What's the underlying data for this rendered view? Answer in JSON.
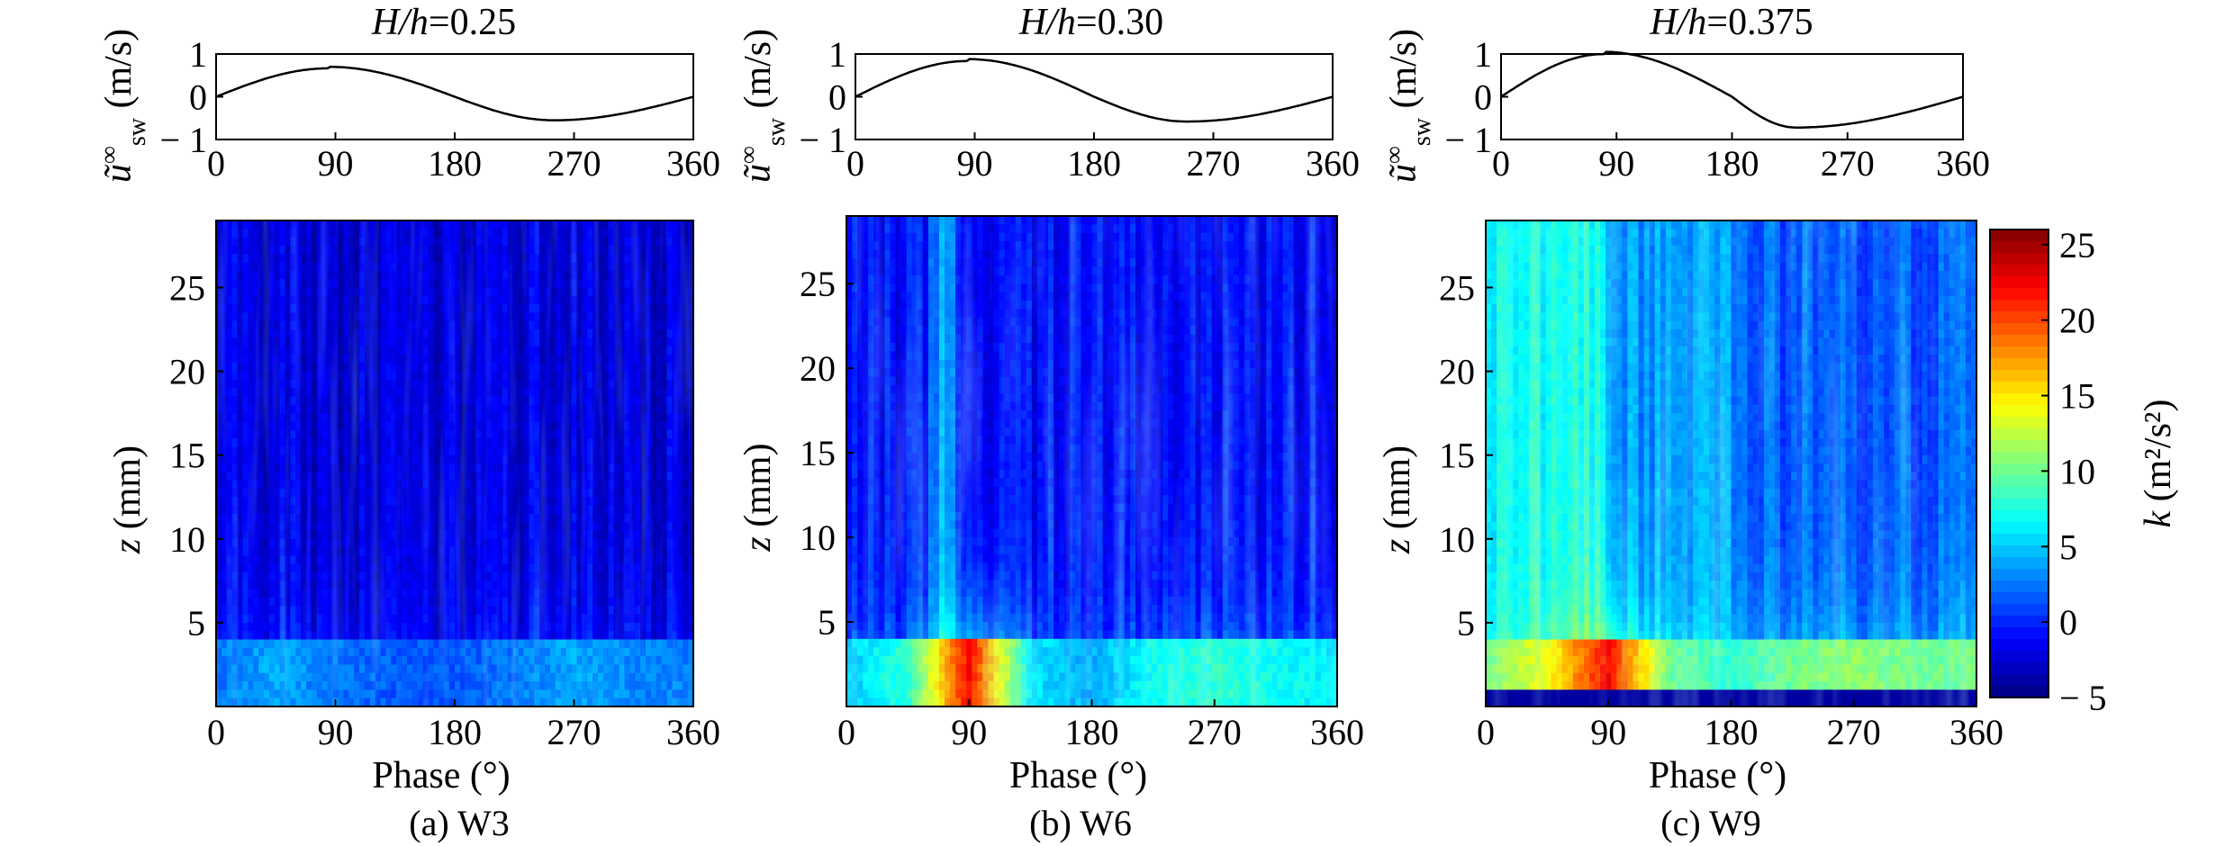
{
  "chart_data": [
    {
      "id": "a",
      "type": "heatmap",
      "title_var": "H/h",
      "title_value": "=0.25",
      "caption": "(a) W3",
      "top_series": {
        "type": "line",
        "ylabel": "ũ∞sw (m/s)",
        "ylabel_var": "ũ",
        "ylabel_sup": "∞",
        "ylabel_sub": "sw",
        "ylabel_unit": " (m/s)",
        "ylim": [
          -1,
          1
        ],
        "yticks": [
          "1",
          "0",
          "− 1"
        ],
        "xlim": [
          0,
          360
        ],
        "xticks": [
          "0",
          "90",
          "180",
          "270",
          "360"
        ],
        "amp_pos": 0.7,
        "amp_neg": 0.55,
        "peak_phase": 85,
        "trough_phase": 255
      },
      "xlabel": "Phase (°)",
      "ylabel": "z (mm)",
      "ylabel_var": "z",
      "ylabel_unit": " (mm)",
      "xlim": [
        0,
        360
      ],
      "ylim": [
        0,
        29
      ],
      "xticks": [
        "0",
        "90",
        "180",
        "270",
        "360"
      ],
      "yticks": [
        "5",
        "10",
        "15",
        "20",
        "25"
      ],
      "features": {
        "background_k": -2.2,
        "nearbed_k": [
          2.5,
          4,
          2.5,
          1.5,
          1.5,
          2.5,
          4,
          3,
          2.5
        ],
        "nearbed_top_mm": 4,
        "mid_bands": []
      }
    },
    {
      "id": "b",
      "type": "heatmap",
      "title_var": "H/h",
      "title_value": "=0.30",
      "caption": "(b) W6",
      "top_series": {
        "type": "line",
        "ylabel": "ũ∞sw (m/s)",
        "ylabel_var": "ũ",
        "ylabel_sup": "∞",
        "ylabel_sub": "sw",
        "ylabel_unit": " (m/s)",
        "ylim": [
          -1,
          1
        ],
        "yticks": [
          "1",
          "0",
          "− 1"
        ],
        "xlim": [
          0,
          360
        ],
        "xticks": [
          "0",
          "90",
          "180",
          "270",
          "360"
        ],
        "amp_pos": 0.88,
        "amp_neg": 0.58,
        "peak_phase": 85,
        "trough_phase": 250
      },
      "xlabel": "Phase (°)",
      "ylabel": "z (mm)",
      "ylabel_var": "z",
      "ylabel_unit": " (mm)",
      "xlim": [
        0,
        360
      ],
      "ylim": [
        0,
        29
      ],
      "xticks": [
        "0",
        "90",
        "180",
        "270",
        "360"
      ],
      "yticks": [
        "5",
        "10",
        "15",
        "20",
        "25"
      ],
      "features": {
        "background_k": -1.0,
        "nearbed_k": [
          5,
          8,
          22,
          6,
          4,
          7,
          8,
          7,
          6
        ],
        "nearbed_top_mm": 4,
        "mid_bands": [
          [
            60,
            80,
            3.2
          ]
        ]
      }
    },
    {
      "id": "c",
      "type": "heatmap",
      "title_var": "H/h",
      "title_value": "=0.375",
      "caption": "(c) W9",
      "top_series": {
        "type": "line",
        "ylabel": "ũ∞sw (m/s)",
        "ylabel_var": "ũ",
        "ylabel_sup": "∞",
        "ylabel_sub": "sw",
        "ylabel_unit": " (m/s)",
        "ylim": [
          -1,
          1
        ],
        "yticks": [
          "1",
          "0",
          "− 1"
        ],
        "xlim": [
          0,
          360
        ],
        "xticks": [
          "0",
          "90",
          "180",
          "270",
          "360"
        ],
        "amp_pos": 1.05,
        "amp_neg": 0.72,
        "peak_phase": 80,
        "trough_phase": 230
      },
      "xlabel": "Phase (°)",
      "ylabel": "z (mm)",
      "ylabel_var": "z",
      "ylabel_unit": " (mm)",
      "xlim": [
        0,
        360
      ],
      "ylim": [
        0,
        29
      ],
      "xticks": [
        "0",
        "90",
        "180",
        "270",
        "360"
      ],
      "yticks": [
        "5",
        "10",
        "15",
        "20",
        "25"
      ],
      "features": {
        "background_k": 2.5,
        "nearbed_k": [
          10,
          14,
          22,
          10,
          8,
          10,
          11,
          10,
          10
        ],
        "nearbed_top_mm": 4,
        "mid_bands": [
          [
            0,
            90,
            7
          ],
          [
            90,
            180,
            3.5
          ],
          [
            180,
            360,
            1.5
          ]
        ]
      }
    }
  ],
  "colorbar": {
    "label": "k (m²/s²)",
    "label_var": "k",
    "label_unit": " (m²/s²)",
    "range": [
      -5,
      26
    ],
    "ticks": [
      "25",
      "20",
      "15",
      "10",
      "5",
      "0",
      "− 5"
    ],
    "tick_values": [
      25,
      20,
      15,
      10,
      5,
      0,
      -5
    ],
    "colormap": "jet"
  }
}
